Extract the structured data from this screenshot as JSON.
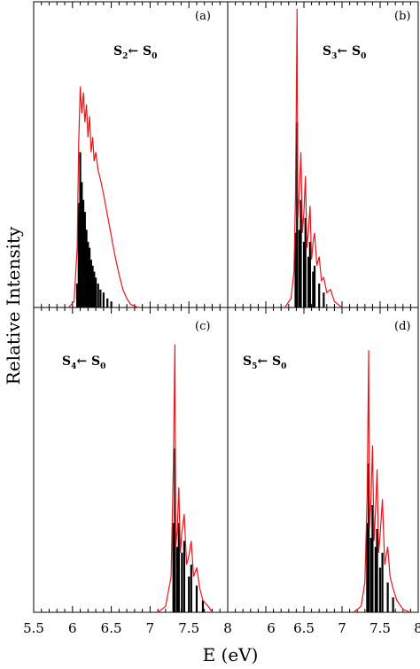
{
  "chart_data": {
    "type": "line",
    "xlabel": "E (eV)",
    "ylabel": "Relative Intensity",
    "xlim": [
      5.5,
      8.0
    ],
    "x_tick_labels": [
      "5.5",
      "6",
      "6.5",
      "7",
      "7.5",
      "8"
    ],
    "x_tick_labels_right": [
      "6",
      "6.5",
      "7",
      "7.5",
      "8"
    ],
    "grid": false,
    "colors": {
      "envelope": "#e8161b",
      "sticks": "#000000",
      "frame": "#000000"
    },
    "panels": [
      {
        "label": "(a)",
        "transition": {
          "upper": "S",
          "upper_sub": "2",
          "arrow": "←",
          "lower": "S",
          "lower_sub": "0"
        },
        "envelope": [
          [
            5.95,
            0
          ],
          [
            6.02,
            0.02
          ],
          [
            6.06,
            0.2
          ],
          [
            6.08,
            0.55
          ],
          [
            6.1,
            0.74
          ],
          [
            6.12,
            0.65
          ],
          [
            6.14,
            0.72
          ],
          [
            6.16,
            0.62
          ],
          [
            6.18,
            0.68
          ],
          [
            6.2,
            0.57
          ],
          [
            6.22,
            0.64
          ],
          [
            6.24,
            0.52
          ],
          [
            6.26,
            0.57
          ],
          [
            6.28,
            0.49
          ],
          [
            6.3,
            0.52
          ],
          [
            6.33,
            0.46
          ],
          [
            6.36,
            0.43
          ],
          [
            6.4,
            0.38
          ],
          [
            6.45,
            0.31
          ],
          [
            6.5,
            0.24
          ],
          [
            6.55,
            0.17
          ],
          [
            6.6,
            0.11
          ],
          [
            6.65,
            0.06
          ],
          [
            6.7,
            0.03
          ],
          [
            6.75,
            0.01
          ],
          [
            6.85,
            0
          ]
        ],
        "sticks": [
          [
            6.06,
            0.08
          ],
          [
            6.08,
            0.35
          ],
          [
            6.1,
            0.52
          ],
          [
            6.12,
            0.42
          ],
          [
            6.14,
            0.36
          ],
          [
            6.16,
            0.32
          ],
          [
            6.18,
            0.26
          ],
          [
            6.2,
            0.22
          ],
          [
            6.22,
            0.2
          ],
          [
            6.24,
            0.16
          ],
          [
            6.26,
            0.14
          ],
          [
            6.28,
            0.12
          ],
          [
            6.3,
            0.1
          ],
          [
            6.33,
            0.08
          ],
          [
            6.36,
            0.06
          ],
          [
            6.4,
            0.05
          ],
          [
            6.45,
            0.03
          ],
          [
            6.5,
            0.02
          ]
        ]
      },
      {
        "label": "(b)",
        "transition": {
          "upper": "S",
          "upper_sub": "3",
          "arrow": "←",
          "lower": "S",
          "lower_sub": "0"
        },
        "envelope": [
          [
            6.25,
            0
          ],
          [
            6.33,
            0.03
          ],
          [
            6.37,
            0.12
          ],
          [
            6.39,
            0.38
          ],
          [
            6.41,
            1.0
          ],
          [
            6.42,
            0.3
          ],
          [
            6.44,
            0.38
          ],
          [
            6.46,
            0.52
          ],
          [
            6.48,
            0.25
          ],
          [
            6.5,
            0.32
          ],
          [
            6.52,
            0.44
          ],
          [
            6.54,
            0.2
          ],
          [
            6.56,
            0.26
          ],
          [
            6.58,
            0.34
          ],
          [
            6.6,
            0.16
          ],
          [
            6.62,
            0.22
          ],
          [
            6.64,
            0.25
          ],
          [
            6.67,
            0.14
          ],
          [
            6.7,
            0.17
          ],
          [
            6.73,
            0.09
          ],
          [
            6.76,
            0.1
          ],
          [
            6.8,
            0.05
          ],
          [
            6.85,
            0.06
          ],
          [
            6.9,
            0.02
          ],
          [
            7.0,
            0
          ]
        ],
        "sticks": [
          [
            6.39,
            0.25
          ],
          [
            6.41,
            0.62
          ],
          [
            6.44,
            0.26
          ],
          [
            6.46,
            0.36
          ],
          [
            6.5,
            0.22
          ],
          [
            6.52,
            0.3
          ],
          [
            6.56,
            0.17
          ],
          [
            6.58,
            0.22
          ],
          [
            6.62,
            0.12
          ],
          [
            6.64,
            0.14
          ],
          [
            6.7,
            0.08
          ],
          [
            6.76,
            0.05
          ]
        ]
      },
      {
        "label": "(c)",
        "transition": {
          "upper": "S",
          "upper_sub": "4",
          "arrow": "←",
          "lower": "S",
          "lower_sub": "0"
        },
        "envelope": [
          [
            7.1,
            0
          ],
          [
            7.2,
            0.02
          ],
          [
            7.27,
            0.12
          ],
          [
            7.3,
            0.5
          ],
          [
            7.32,
            0.9
          ],
          [
            7.33,
            0.22
          ],
          [
            7.35,
            0.28
          ],
          [
            7.37,
            0.42
          ],
          [
            7.39,
            0.2
          ],
          [
            7.41,
            0.27
          ],
          [
            7.44,
            0.33
          ],
          [
            7.47,
            0.16
          ],
          [
            7.5,
            0.19
          ],
          [
            7.53,
            0.24
          ],
          [
            7.56,
            0.12
          ],
          [
            7.6,
            0.15
          ],
          [
            7.64,
            0.08
          ],
          [
            7.68,
            0.04
          ],
          [
            7.75,
            0.02
          ],
          [
            7.8,
            0
          ]
        ],
        "sticks": [
          [
            7.3,
            0.3
          ],
          [
            7.32,
            0.55
          ],
          [
            7.35,
            0.22
          ],
          [
            7.37,
            0.3
          ],
          [
            7.41,
            0.2
          ],
          [
            7.44,
            0.24
          ],
          [
            7.5,
            0.12
          ],
          [
            7.53,
            0.16
          ],
          [
            7.6,
            0.09
          ],
          [
            7.68,
            0.04
          ]
        ]
      },
      {
        "label": "(d)",
        "transition": {
          "upper": "S",
          "upper_sub": "5",
          "arrow": "←",
          "lower": "S",
          "lower_sub": "0"
        },
        "envelope": [
          [
            7.15,
            0
          ],
          [
            7.25,
            0.02
          ],
          [
            7.3,
            0.1
          ],
          [
            7.33,
            0.4
          ],
          [
            7.35,
            0.88
          ],
          [
            7.36,
            0.28
          ],
          [
            7.38,
            0.38
          ],
          [
            7.4,
            0.56
          ],
          [
            7.42,
            0.24
          ],
          [
            7.44,
            0.34
          ],
          [
            7.46,
            0.48
          ],
          [
            7.48,
            0.2
          ],
          [
            7.5,
            0.26
          ],
          [
            7.53,
            0.38
          ],
          [
            7.56,
            0.16
          ],
          [
            7.6,
            0.22
          ],
          [
            7.63,
            0.12
          ],
          [
            7.67,
            0.08
          ],
          [
            7.72,
            0.04
          ],
          [
            7.8,
            0.01
          ],
          [
            7.9,
            0
          ]
        ],
        "sticks": [
          [
            7.33,
            0.3
          ],
          [
            7.35,
            0.5
          ],
          [
            7.38,
            0.25
          ],
          [
            7.4,
            0.36
          ],
          [
            7.44,
            0.22
          ],
          [
            7.46,
            0.28
          ],
          [
            7.5,
            0.15
          ],
          [
            7.53,
            0.2
          ],
          [
            7.6,
            0.1
          ],
          [
            7.67,
            0.05
          ]
        ]
      }
    ]
  }
}
